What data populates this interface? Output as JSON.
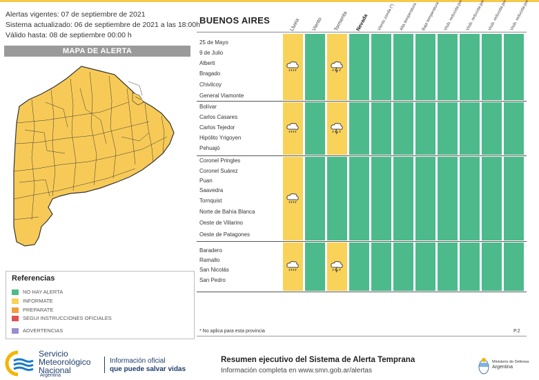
{
  "header": {
    "alerts_line": "Alertas vigentes: 07 de septiembre de 2021",
    "updated_line": "Sistema actualizado: 06 de septiembre de 2021 a las 18:00h",
    "valid_line": "Válido hasta: 08 de septiembre 00:00 h"
  },
  "map": {
    "title": "MAPA DE ALERTA"
  },
  "references": {
    "title": "Referencias",
    "items": [
      {
        "label": "NO HAY ALERTA",
        "color": "#4dba8c"
      },
      {
        "label": "INFORMATE",
        "color": "#f9d25a"
      },
      {
        "label": "PREPARATE",
        "color": "#f29d3c"
      },
      {
        "label": "SEGUI INSTRUCCIONES OFICIALES",
        "color": "#e05252"
      },
      {
        "label": "ADVERTENCIAS",
        "color": "#9b8ccd"
      }
    ]
  },
  "table": {
    "province": "BUENOS AIRES",
    "columns": [
      "Lluvia",
      "Viento",
      "Tormenta",
      "Nevada",
      "Viento zonda (*)",
      "Alta temperatura",
      "Baja temperatura",
      "Visib. reducida por polvo en suspensión",
      "Visib. reducida por ceniza volcánica",
      "Visib. reducida por humo",
      "Visib. reducida por neblina"
    ],
    "groups": [
      {
        "zones": [
          "25 de Mayo",
          "9 de Julio",
          "Alberti",
          "Bragado",
          "Chivilcoy",
          "General Viamonte"
        ],
        "levels": [
          "informate",
          "none",
          "informate",
          "none",
          "none",
          "none",
          "none",
          "none",
          "none",
          "none",
          "none"
        ]
      },
      {
        "zones": [
          "Bolívar",
          "Carlos Casares",
          "Carlos Tejedor",
          "Hipólito Yrigoyen",
          "Pehuajó"
        ],
        "levels": [
          "informate",
          "none",
          "informate",
          "none",
          "none",
          "none",
          "none",
          "none",
          "none",
          "none",
          "none"
        ]
      },
      {
        "zones": [
          "Coronel Pringles",
          "Coronel Suárez",
          "Puan",
          "Saavedra",
          "Tornquist",
          "Norte de Bahía Blanca",
          "Oeste de Villarino",
          "Oeste de Patagones"
        ],
        "levels": [
          "informate",
          "none",
          "none",
          "none",
          "none",
          "none",
          "none",
          "none",
          "none",
          "none",
          "none"
        ]
      },
      {
        "zones": [
          "Baradero",
          "Ramallo",
          "San Nicolás",
          "San Pedro"
        ],
        "levels": [
          "informate",
          "none",
          "informate",
          "none",
          "none",
          "none",
          "none",
          "none",
          "none",
          "none",
          "none"
        ]
      }
    ],
    "icons": {
      "rain": "rain-cloud-icon",
      "storm": "storm-cloud-icon"
    },
    "colors": {
      "none": "#4dba8c",
      "informate": "#f9d25a"
    }
  },
  "footer": {
    "footnote": "* No aplica para esta provincia",
    "page": "P.2",
    "smn_line1": "Servicio",
    "smn_line2": "Meteorológico",
    "smn_line3": "Nacional",
    "smn_country": "Argentina",
    "slogan_line1": "Información oficial",
    "slogan_line2": "que puede salvar vidas",
    "exec_title": "Resumen ejecutivo del Sistema de Alerta Temprana",
    "exec_sub": "Información completa en www.smn.gob.ar/alertas",
    "ministry_line1": "Ministerio de Defensa",
    "ministry_line2": "Argentina"
  }
}
